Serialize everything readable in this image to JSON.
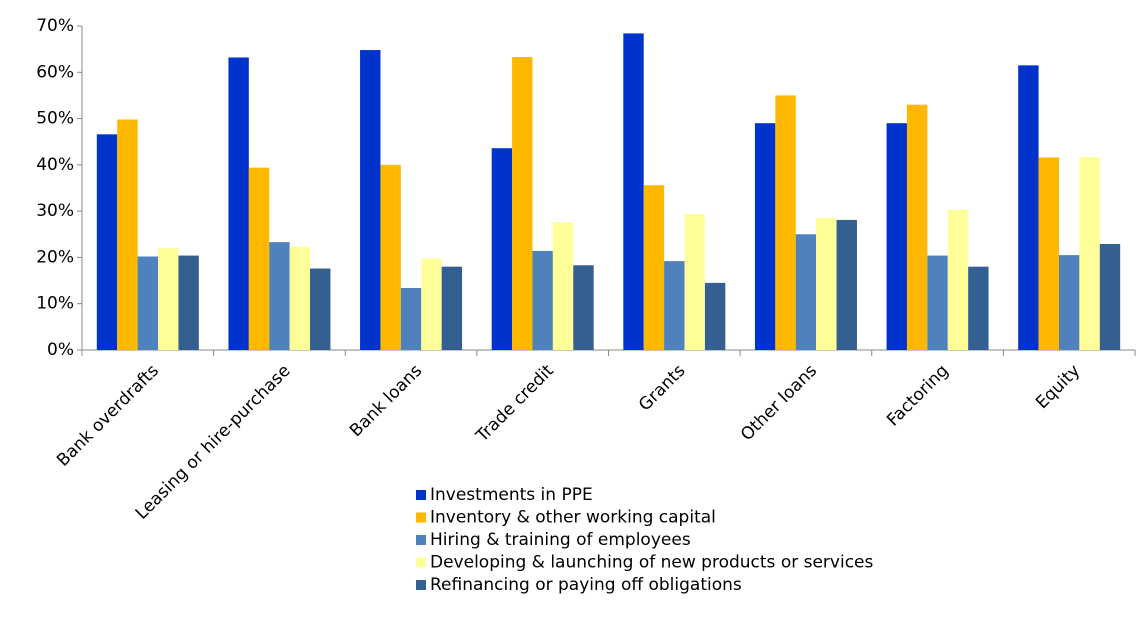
{
  "chart_data": {
    "type": "bar",
    "categories": [
      "Bank overdrafts",
      "Leasing or hire-purchase",
      "Bank loans",
      "Trade credit",
      "Grants",
      "Other loans",
      "Factoring",
      "Equity"
    ],
    "series": [
      {
        "name": "Investments in PPE",
        "color": "#0033cc",
        "values": [
          46.6,
          63.2,
          64.8,
          43.6,
          68.4,
          49,
          49,
          61.5
        ]
      },
      {
        "name": "Inventory & other working capital",
        "color": "#ffb800",
        "values": [
          49.8,
          39.4,
          40,
          63.3,
          35.6,
          55,
          53,
          41.6
        ]
      },
      {
        "name": "Hiring & training of employees",
        "color": "#4f81bd",
        "values": [
          20.2,
          23.3,
          13.4,
          21.4,
          19.2,
          25,
          20.4,
          20.5
        ]
      },
      {
        "name": "Developing & launching of new products or services",
        "color": "#ffff99",
        "values": [
          22,
          22.3,
          19.8,
          27.6,
          29.4,
          28.5,
          30.3,
          41.7
        ]
      },
      {
        "name": "Refinancing or paying off obligations",
        "color": "#335f91",
        "values": [
          20.4,
          17.6,
          18,
          18.3,
          14.5,
          28.1,
          18,
          22.9
        ]
      }
    ],
    "ylim": [
      0,
      70
    ],
    "yticks": [
      {
        "value": 0,
        "label": "0%"
      },
      {
        "value": 10,
        "label": "10%"
      },
      {
        "value": 20,
        "label": "20%"
      },
      {
        "value": 30,
        "label": "30%"
      },
      {
        "value": 40,
        "label": "40%"
      },
      {
        "value": 50,
        "label": "50%"
      },
      {
        "value": 60,
        "label": "60%"
      },
      {
        "value": 70,
        "label": "70%"
      }
    ],
    "grid": false
  }
}
